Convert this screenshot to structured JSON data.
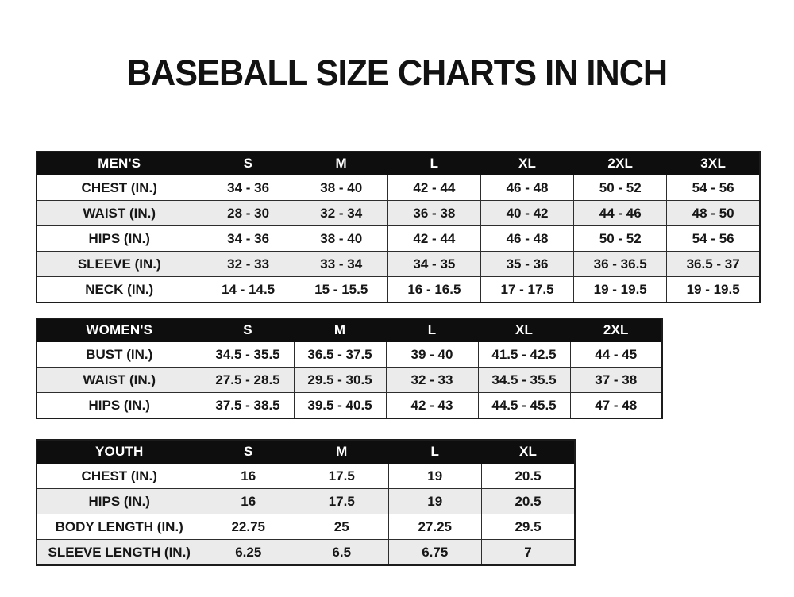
{
  "page": {
    "title": "BASEBALL SIZE CHARTS IN INCH"
  },
  "colors": {
    "background": "#ffffff",
    "header_bg": "#0e0e0e",
    "header_text": "#ffffff",
    "row_stripe": "#ebebeb",
    "body_text": "#161616",
    "border": "#2d2d2d"
  },
  "tables": [
    {
      "id": "mens",
      "header": [
        "MEN'S",
        "S",
        "M",
        "L",
        "XL",
        "2XL",
        "3XL"
      ],
      "rows": [
        [
          "CHEST (IN.)",
          "34 - 36",
          "38 - 40",
          "42 - 44",
          "46 - 48",
          "50 - 52",
          "54 - 56"
        ],
        [
          "WAIST (IN.)",
          "28 - 30",
          "32 - 34",
          "36 - 38",
          "40 - 42",
          "44 - 46",
          "48 - 50"
        ],
        [
          "HIPS (IN.)",
          "34 - 36",
          "38 - 40",
          "42 - 44",
          "46 - 48",
          "50 - 52",
          "54 - 56"
        ],
        [
          "SLEEVE (IN.)",
          "32 - 33",
          "33 - 34",
          "34 - 35",
          "35 - 36",
          "36 - 36.5",
          "36.5 - 37"
        ],
        [
          "NECK (IN.)",
          "14 - 14.5",
          "15 - 15.5",
          "16 - 16.5",
          "17 - 17.5",
          "19 - 19.5",
          "19 - 19.5"
        ]
      ]
    },
    {
      "id": "womens",
      "header": [
        "WOMEN'S",
        "S",
        "M",
        "L",
        "XL",
        "2XL"
      ],
      "rows": [
        [
          "BUST (IN.)",
          "34.5 - 35.5",
          "36.5 - 37.5",
          "39 - 40",
          "41.5 - 42.5",
          "44 - 45"
        ],
        [
          "WAIST (IN.)",
          "27.5 - 28.5",
          "29.5 - 30.5",
          "32 - 33",
          "34.5 - 35.5",
          "37 - 38"
        ],
        [
          "HIPS (IN.)",
          "37.5 - 38.5",
          "39.5 - 40.5",
          "42 - 43",
          "44.5 - 45.5",
          "47 - 48"
        ]
      ]
    },
    {
      "id": "youth",
      "header": [
        "YOUTH",
        "S",
        "M",
        "L",
        "XL"
      ],
      "rows": [
        [
          "CHEST (IN.)",
          "16",
          "17.5",
          "19",
          "20.5"
        ],
        [
          "HIPS (IN.)",
          "16",
          "17.5",
          "19",
          "20.5"
        ],
        [
          "BODY LENGTH (IN.)",
          "22.75",
          "25",
          "27.25",
          "29.5"
        ],
        [
          "SLEEVE LENGTH (IN.)",
          "6.25",
          "6.5",
          "6.75",
          "7"
        ]
      ]
    }
  ]
}
